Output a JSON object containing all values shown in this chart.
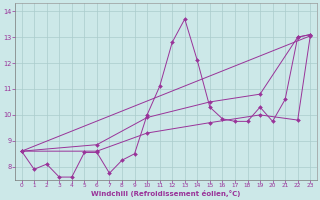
{
  "xlabel": "Windchill (Refroidissement éolien,°C)",
  "xlim": [
    -0.5,
    23.5
  ],
  "ylim": [
    7.5,
    14.3
  ],
  "xticks": [
    0,
    1,
    2,
    3,
    4,
    5,
    6,
    7,
    8,
    9,
    10,
    11,
    12,
    13,
    14,
    15,
    16,
    17,
    18,
    19,
    20,
    21,
    22,
    23
  ],
  "yticks": [
    8,
    9,
    10,
    11,
    12,
    13,
    14
  ],
  "bg_color": "#cce8e8",
  "line_color": "#993399",
  "grid_color": "#aacccc",
  "main_line": [
    [
      0,
      8.6
    ],
    [
      1,
      7.9
    ],
    [
      2,
      8.1
    ],
    [
      3,
      7.6
    ],
    [
      4,
      7.6
    ],
    [
      5,
      8.55
    ],
    [
      6,
      8.55
    ],
    [
      7,
      7.75
    ],
    [
      8,
      8.25
    ],
    [
      9,
      8.5
    ],
    [
      10,
      10.0
    ],
    [
      11,
      11.1
    ],
    [
      12,
      12.8
    ],
    [
      13,
      13.7
    ],
    [
      14,
      12.1
    ],
    [
      15,
      10.3
    ],
    [
      16,
      9.85
    ],
    [
      17,
      9.75
    ],
    [
      18,
      9.75
    ],
    [
      19,
      10.3
    ],
    [
      20,
      9.75
    ],
    [
      21,
      10.6
    ],
    [
      22,
      13.0
    ],
    [
      23,
      13.1
    ]
  ],
  "line2": [
    [
      0,
      8.6
    ],
    [
      6,
      8.85
    ],
    [
      10,
      9.9
    ],
    [
      15,
      10.5
    ],
    [
      19,
      10.8
    ],
    [
      22,
      13.0
    ],
    [
      23,
      13.1
    ]
  ],
  "line3": [
    [
      0,
      8.6
    ],
    [
      6,
      8.6
    ],
    [
      10,
      9.3
    ],
    [
      15,
      9.7
    ],
    [
      19,
      10.0
    ],
    [
      22,
      9.8
    ],
    [
      23,
      13.05
    ]
  ],
  "line4": [
    [
      0,
      8.6
    ],
    [
      23,
      13.05
    ]
  ]
}
